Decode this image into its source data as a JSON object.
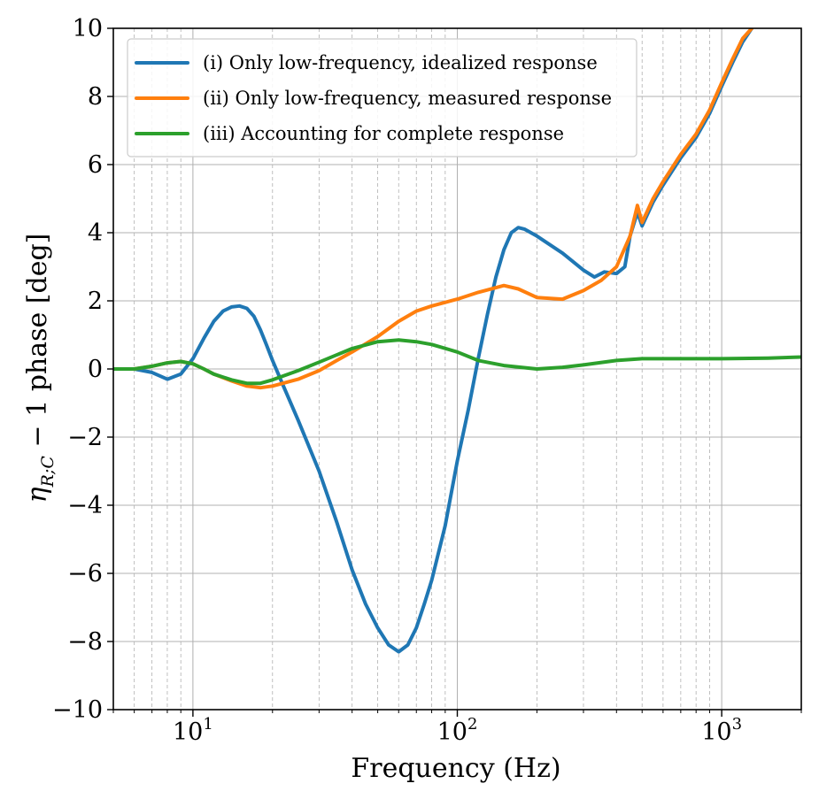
{
  "chart_data": {
    "type": "line",
    "title": "",
    "xlabel": "Frequency (Hz)",
    "ylabel_parts": {
      "symbol": "η",
      "subscript": "R;C",
      "rest": " − 1 phase [deg]"
    },
    "xscale": "log",
    "xlim": [
      5,
      2000
    ],
    "ylim": [
      -10,
      10
    ],
    "grid": true,
    "legend_position": "top-left",
    "x_ticks": [
      {
        "value": 10,
        "base": "10",
        "exp": "1"
      },
      {
        "value": 100,
        "base": "10",
        "exp": "2"
      },
      {
        "value": 1000,
        "base": "10",
        "exp": "3"
      }
    ],
    "y_ticks": [
      {
        "value": -10,
        "label": "−10"
      },
      {
        "value": -8,
        "label": "−8"
      },
      {
        "value": -6,
        "label": "−6"
      },
      {
        "value": -4,
        "label": "−4"
      },
      {
        "value": -2,
        "label": "−2"
      },
      {
        "value": 0,
        "label": "0"
      },
      {
        "value": 2,
        "label": "2"
      },
      {
        "value": 4,
        "label": "4"
      },
      {
        "value": 6,
        "label": "6"
      },
      {
        "value": 8,
        "label": "8"
      },
      {
        "value": 10,
        "label": "10"
      }
    ],
    "series": [
      {
        "name": "(i) Only low-frequency, idealized response",
        "color": "#1f77b4",
        "points": [
          [
            5,
            0
          ],
          [
            6,
            0
          ],
          [
            7,
            -0.1
          ],
          [
            8,
            -0.3
          ],
          [
            9,
            -0.15
          ],
          [
            10,
            0.3
          ],
          [
            11,
            0.9
          ],
          [
            12,
            1.4
          ],
          [
            13,
            1.7
          ],
          [
            14,
            1.82
          ],
          [
            15,
            1.85
          ],
          [
            16,
            1.78
          ],
          [
            17,
            1.55
          ],
          [
            18,
            1.15
          ],
          [
            19,
            0.7
          ],
          [
            20,
            0.25
          ],
          [
            22,
            -0.5
          ],
          [
            25,
            -1.5
          ],
          [
            30,
            -3
          ],
          [
            35,
            -4.5
          ],
          [
            40,
            -5.9
          ],
          [
            45,
            -6.9
          ],
          [
            50,
            -7.6
          ],
          [
            55,
            -8.1
          ],
          [
            60,
            -8.3
          ],
          [
            65,
            -8.1
          ],
          [
            70,
            -7.6
          ],
          [
            75,
            -6.9
          ],
          [
            80,
            -6.2
          ],
          [
            90,
            -4.6
          ],
          [
            100,
            -2.7
          ],
          [
            110,
            -1.2
          ],
          [
            120,
            0.3
          ],
          [
            130,
            1.6
          ],
          [
            140,
            2.7
          ],
          [
            150,
            3.5
          ],
          [
            160,
            4
          ],
          [
            170,
            4.15
          ],
          [
            180,
            4.1
          ],
          [
            200,
            3.9
          ],
          [
            250,
            3.4
          ],
          [
            300,
            2.9
          ],
          [
            330,
            2.7
          ],
          [
            360,
            2.85
          ],
          [
            400,
            2.8
          ],
          [
            430,
            3
          ],
          [
            450,
            3.9
          ],
          [
            480,
            4.6
          ],
          [
            500,
            4.2
          ],
          [
            550,
            4.9
          ],
          [
            600,
            5.4
          ],
          [
            700,
            6.2
          ],
          [
            800,
            6.8
          ],
          [
            900,
            7.5
          ],
          [
            1000,
            8.3
          ],
          [
            1100,
            9
          ],
          [
            1200,
            9.6
          ],
          [
            1300,
            10
          ]
        ]
      },
      {
        "name": "(ii) Only low-frequency, measured response",
        "color": "#ff7f0e",
        "points": [
          [
            5,
            0
          ],
          [
            6,
            0
          ],
          [
            7,
            0.08
          ],
          [
            8,
            0.18
          ],
          [
            9,
            0.22
          ],
          [
            10,
            0.15
          ],
          [
            11,
            0
          ],
          [
            12,
            -0.15
          ],
          [
            14,
            -0.35
          ],
          [
            16,
            -0.5
          ],
          [
            18,
            -0.55
          ],
          [
            20,
            -0.5
          ],
          [
            25,
            -0.3
          ],
          [
            30,
            -0.05
          ],
          [
            35,
            0.25
          ],
          [
            40,
            0.5
          ],
          [
            50,
            0.95
          ],
          [
            60,
            1.4
          ],
          [
            70,
            1.7
          ],
          [
            80,
            1.85
          ],
          [
            100,
            2.05
          ],
          [
            120,
            2.25
          ],
          [
            150,
            2.45
          ],
          [
            170,
            2.35
          ],
          [
            200,
            2.1
          ],
          [
            250,
            2.05
          ],
          [
            300,
            2.3
          ],
          [
            350,
            2.6
          ],
          [
            400,
            3
          ],
          [
            450,
            3.9
          ],
          [
            480,
            4.8
          ],
          [
            500,
            4.3
          ],
          [
            550,
            5
          ],
          [
            600,
            5.5
          ],
          [
            700,
            6.3
          ],
          [
            800,
            6.9
          ],
          [
            900,
            7.6
          ],
          [
            1000,
            8.4
          ],
          [
            1100,
            9.1
          ],
          [
            1200,
            9.7
          ],
          [
            1300,
            10
          ]
        ]
      },
      {
        "name": "(iii) Accounting for complete response",
        "color": "#2ca02c",
        "points": [
          [
            5,
            0
          ],
          [
            6,
            0
          ],
          [
            7,
            0.08
          ],
          [
            8,
            0.18
          ],
          [
            9,
            0.22
          ],
          [
            10,
            0.15
          ],
          [
            11,
            0
          ],
          [
            12,
            -0.15
          ],
          [
            14,
            -0.32
          ],
          [
            16,
            -0.42
          ],
          [
            18,
            -0.42
          ],
          [
            20,
            -0.32
          ],
          [
            25,
            -0.05
          ],
          [
            30,
            0.2
          ],
          [
            40,
            0.6
          ],
          [
            50,
            0.8
          ],
          [
            60,
            0.85
          ],
          [
            70,
            0.8
          ],
          [
            80,
            0.72
          ],
          [
            100,
            0.5
          ],
          [
            120,
            0.25
          ],
          [
            150,
            0.1
          ],
          [
            200,
            0
          ],
          [
            250,
            0.05
          ],
          [
            300,
            0.12
          ],
          [
            400,
            0.25
          ],
          [
            500,
            0.3
          ],
          [
            700,
            0.3
          ],
          [
            1000,
            0.3
          ],
          [
            1500,
            0.32
          ],
          [
            2000,
            0.35
          ]
        ]
      }
    ]
  }
}
